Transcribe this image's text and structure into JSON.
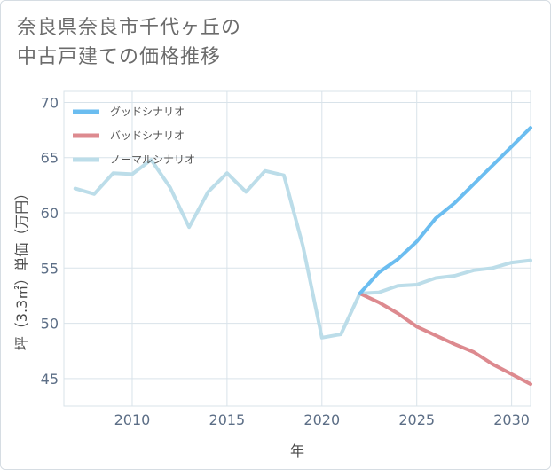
{
  "title_lines": [
    "奈良県奈良市千代ヶ丘の",
    "中古戸建ての価格推移"
  ],
  "colors": {
    "good": "#6bbdf0",
    "bad": "#dd8a8f",
    "normal": "#bcdde9",
    "grid": "#d9e3ea",
    "axis": "#5c6e86"
  },
  "chart_data": {
    "type": "line",
    "title": "奈良県奈良市千代ヶ丘の中古戸建ての価格推移",
    "xlabel": "年",
    "ylabel": "坪（3.3㎡）単価（万円）",
    "xlim": [
      2006.4,
      2031
    ],
    "ylim": [
      42.5,
      71
    ],
    "xticks": [
      2010,
      2015,
      2020,
      2025,
      2030
    ],
    "yticks": [
      45,
      50,
      55,
      60,
      65,
      70
    ],
    "grid": true,
    "legend_position": "top-left",
    "series": [
      {
        "name": "グッドシナリオ",
        "color_key": "good",
        "x": [
          2022,
          2023,
          2024,
          2025,
          2026,
          2027,
          2028,
          2029,
          2030,
          2031
        ],
        "y": [
          52.7,
          54.6,
          55.8,
          57.4,
          59.5,
          60.9,
          62.6,
          64.3,
          66.0,
          67.7
        ]
      },
      {
        "name": "バッドシナリオ",
        "color_key": "bad",
        "x": [
          2022,
          2023,
          2024,
          2025,
          2026,
          2027,
          2028,
          2029,
          2030,
          2031
        ],
        "y": [
          52.7,
          51.9,
          50.9,
          49.7,
          48.9,
          48.1,
          47.4,
          46.3,
          45.4,
          44.5
        ]
      },
      {
        "name": "ノーマルシナリオ",
        "color_key": "normal",
        "x": [
          2007,
          2008,
          2009,
          2010,
          2011,
          2012,
          2013,
          2014,
          2015,
          2016,
          2017,
          2018,
          2019,
          2020,
          2021,
          2022,
          2023,
          2024,
          2025,
          2026,
          2027,
          2028,
          2029,
          2030,
          2031
        ],
        "y": [
          62.2,
          61.7,
          63.6,
          63.5,
          64.8,
          62.3,
          58.7,
          61.9,
          63.6,
          61.9,
          63.8,
          63.4,
          57.0,
          48.7,
          49.0,
          52.7,
          52.8,
          53.4,
          53.5,
          54.1,
          54.3,
          54.8,
          55.0,
          55.5,
          55.7
        ]
      }
    ]
  }
}
